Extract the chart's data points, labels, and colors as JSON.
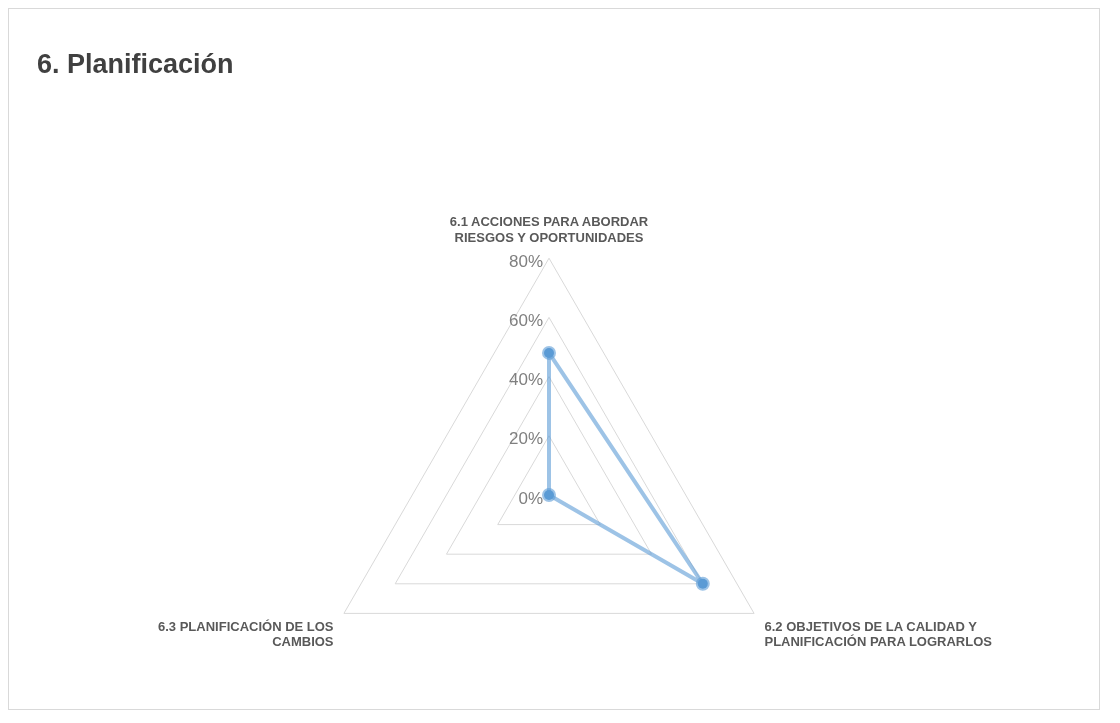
{
  "chart_data": {
    "type": "radar",
    "title": "6. Planificación",
    "categories": [
      "6.1 ACCIONES PARA ABORDAR RIESGOS Y OPORTUNIDADES",
      "6.2 OBJETIVOS DE LA CALIDAD Y PLANIFICACIÓN PARA LOGRARLOS",
      "6.3 PLANIFICACIÓN DE LOS CAMBIOS"
    ],
    "series": [
      {
        "color": "#5b9bd5",
        "values": [
          48,
          60,
          0
        ]
      }
    ],
    "ylim": [
      0,
      80
    ],
    "yticks": [
      {
        "value": 0,
        "label": "0%"
      },
      {
        "value": 20,
        "label": "20%"
      },
      {
        "value": 40,
        "label": "40%"
      },
      {
        "value": 60,
        "label": "60%"
      },
      {
        "value": 80,
        "label": "80%"
      }
    ],
    "grid": true,
    "marker": "circle"
  }
}
